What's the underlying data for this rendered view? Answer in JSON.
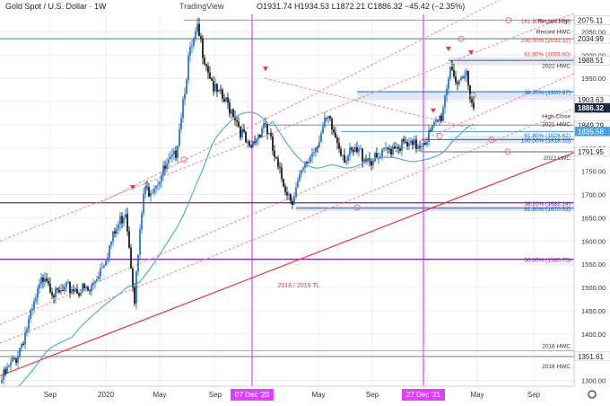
{
  "header": {
    "symbol": "Gold Spot / U.S. Dollar · 1W",
    "brand": "TradingView",
    "ohlc": "O1931.74  H1934.53  L1872.21  C1886.32  −45.42 (−2.35%)"
  },
  "colors": {
    "up": "#1565c0",
    "down": "#000000",
    "channel": "#e88b8b",
    "trendline": "#e53935",
    "ma": "#4aa3df",
    "magenta": "#e040fb",
    "purple": "#7b1fa2",
    "zone": "#dde3f5",
    "grid": "#eeeeee"
  },
  "chart_data": {
    "type": "candlestick",
    "title": "Gold Spot / U.S. Dollar 1W",
    "ylim": [
      1280,
      2090
    ],
    "y_ticks": [
      1300,
      1350,
      1400,
      1450,
      1500,
      1550,
      1600,
      1650,
      1700,
      1750,
      1800,
      1850,
      1900,
      1950,
      2000,
      2050
    ],
    "x_ticks": [
      "Sep",
      "2020",
      "May",
      "Sep",
      "07 Dec '20",
      "May",
      "Sep",
      "27 Dec '21",
      "May",
      "Sep"
    ],
    "price_badges": [
      {
        "label": "2075.11",
        "value": 2075.11,
        "bg": "#ffffff",
        "fg": "#222222"
      },
      {
        "label": "2034.99",
        "value": 2034.99,
        "bg": "#ffffff",
        "fg": "#222222"
      },
      {
        "label": "1988.51",
        "value": 1988.51,
        "bg": "#ffffff",
        "fg": "#222222"
      },
      {
        "label": "1903.63",
        "value": 1903.63,
        "bg": "#ffffff",
        "fg": "#222222"
      },
      {
        "label": "1886.32",
        "value": 1886.32,
        "bg": "#1e2a44",
        "fg": "#ffffff"
      },
      {
        "label": "1849.29",
        "value": 1849.29,
        "bg": "#ffffff",
        "fg": "#222222"
      },
      {
        "label": "1835.58",
        "value": 1835.58,
        "bg": "#4aa3df",
        "fg": "#ffffff"
      },
      {
        "label": "1791.95",
        "value": 1791.95,
        "bg": "#ffffff",
        "fg": "#222222"
      },
      {
        "label": "1351.61",
        "value": 1351.61,
        "bg": "#ffffff",
        "fg": "#222222"
      }
    ],
    "level_labels": [
      {
        "text": "Record High",
        "value": 2075.11,
        "color": "#333333"
      },
      {
        "text": "161.80% (2073.79)",
        "value": 2073.79,
        "color": "#e53935"
      },
      {
        "text": "Record HWC",
        "value": 2052,
        "color": "#333333"
      },
      {
        "text": "200.00% (2033.12)",
        "value": 2033.12,
        "color": "#e53935"
      },
      {
        "text": "61.80% (2003.60)",
        "value": 2003.6,
        "color": "#e53935"
      },
      {
        "text": "2022 HWC",
        "value": 1978,
        "color": "#333333"
      },
      {
        "text": "38.20% (1920.97)",
        "value": 1920.97,
        "color": "#1565c0"
      },
      {
        "text": "High Close",
        "value": 1870,
        "color": "#333333"
      },
      {
        "text": "2021 HWC",
        "value": 1853,
        "color": "#333333"
      },
      {
        "text": "61.80% (1828.62)",
        "value": 1828.62,
        "color": "#1565c0"
      },
      {
        "text": "100.00% (1818.10)",
        "value": 1818.1,
        "color": "#1565c0"
      },
      {
        "text": "2022 LWC",
        "value": 1780,
        "color": "#333333"
      },
      {
        "text": "38.20% (1682.14)",
        "value": 1682.14,
        "color": "#7b1fa2"
      },
      {
        "text": "61.80% (1670.53)",
        "value": 1670.53,
        "color": "#1565c0"
      },
      {
        "text": "50.00% (1560.75)",
        "value": 1560.75,
        "color": "#7b1fa2"
      },
      {
        "text": "2016 HWC",
        "value": 1375,
        "color": "#333333"
      },
      {
        "text": "2018 HWC",
        "value": 1332,
        "color": "#333333"
      }
    ],
    "annotations": [
      {
        "text": "2018 / 2019 TL",
        "value": 1500,
        "color": "#e53935"
      }
    ],
    "highlights": [
      "07 Dec '20",
      "27 Dec '21"
    ]
  }
}
